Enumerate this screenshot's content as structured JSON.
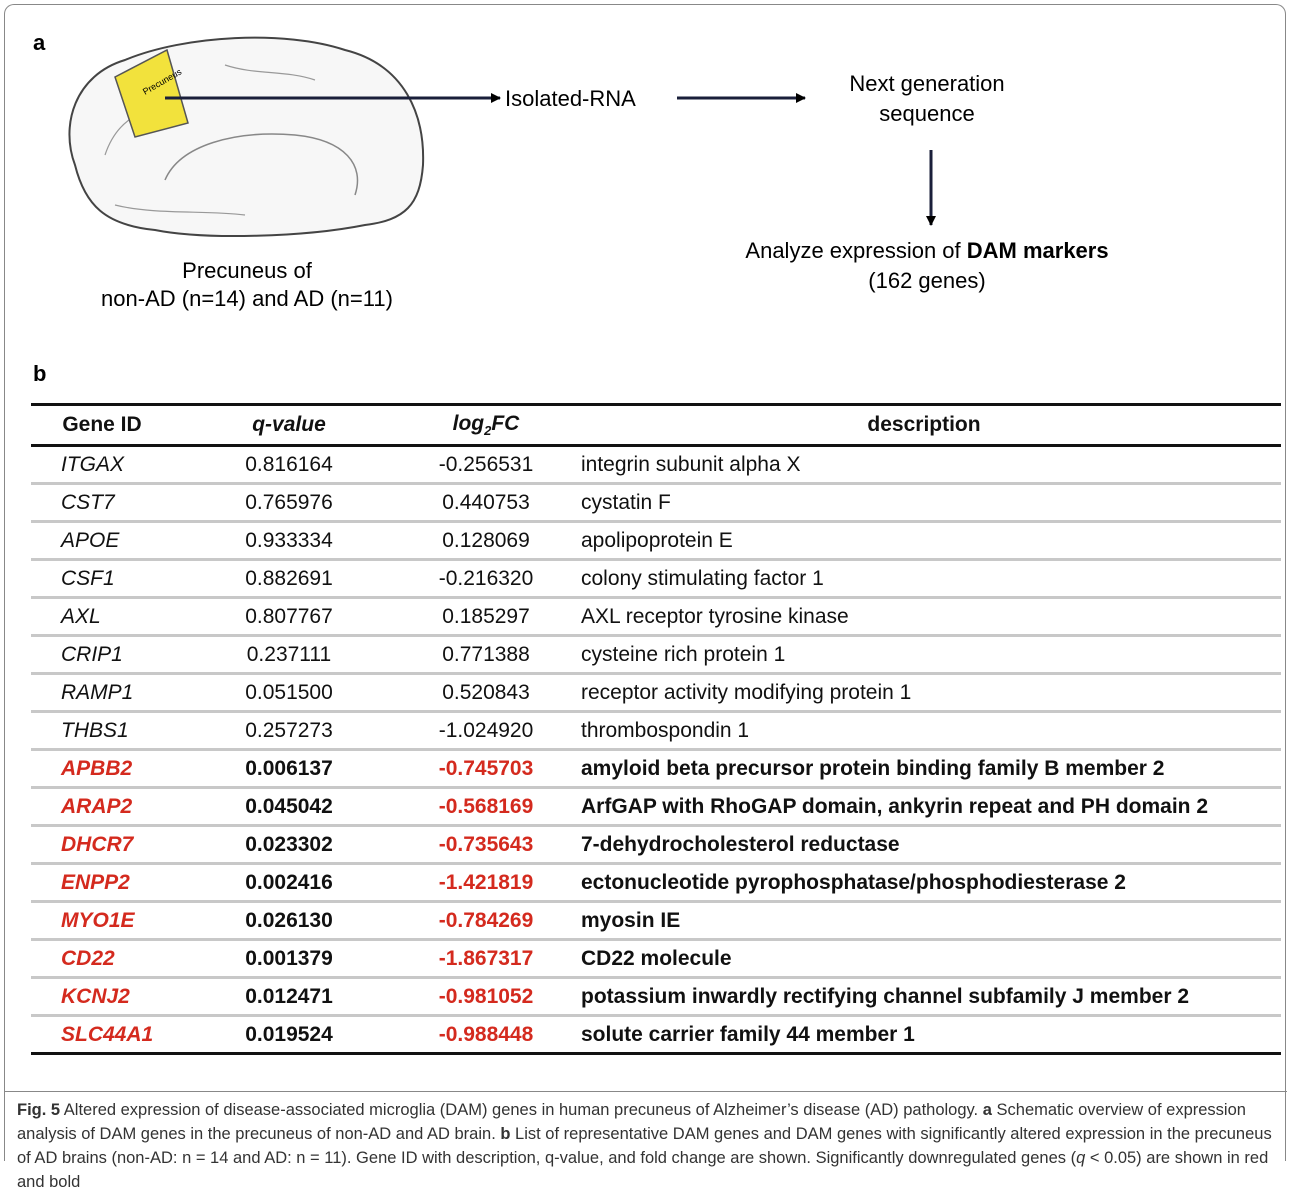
{
  "panel_a": {
    "label": "a",
    "region": "Precuneus",
    "sample": [
      "Precuneus of",
      "non-AD (n=14) and AD (n=11)"
    ],
    "step1": "Isolated-RNA",
    "step2": [
      "Next generation",
      "sequence"
    ],
    "step3": {
      "prefix": "Analyze expression of ",
      "bold": "DAM markers",
      "line2": "(162 genes)"
    }
  },
  "panel_b": {
    "label": "b"
  },
  "table": {
    "header": {
      "gene": "Gene ID",
      "q": "q-value",
      "fc": {
        "base": "log",
        "sub": "2",
        "rest": "FC"
      },
      "description": "description"
    },
    "rows": [
      {
        "gene": "ITGAX",
        "q": "0.816164",
        "fc": "-0.256531",
        "description": "integrin subunit alpha X",
        "significant": false
      },
      {
        "gene": "CST7",
        "q": "0.765976",
        "fc": "0.440753",
        "description": "cystatin F",
        "significant": false
      },
      {
        "gene": "APOE",
        "q": "0.933334",
        "fc": "0.128069",
        "description": "apolipoprotein E",
        "significant": false
      },
      {
        "gene": "CSF1",
        "q": "0.882691",
        "fc": "-0.216320",
        "description": "colony stimulating factor 1",
        "significant": false
      },
      {
        "gene": "AXL",
        "q": "0.807767",
        "fc": "0.185297",
        "description": "AXL receptor tyrosine kinase",
        "significant": false
      },
      {
        "gene": "CRIP1",
        "q": "0.237111",
        "fc": "0.771388",
        "description": "cysteine rich protein 1",
        "significant": false
      },
      {
        "gene": "RAMP1",
        "q": "0.051500",
        "fc": "0.520843",
        "description": "receptor activity modifying protein 1",
        "significant": false
      },
      {
        "gene": "THBS1",
        "q": "0.257273",
        "fc": "-1.024920",
        "description": "thrombospondin 1",
        "significant": false
      },
      {
        "gene": "APBB2",
        "q": "0.006137",
        "fc": "-0.745703",
        "description": "amyloid beta precursor protein binding family B member 2",
        "significant": true
      },
      {
        "gene": "ARAP2",
        "q": "0.045042",
        "fc": "-0.568169",
        "description": "ArfGAP with RhoGAP domain, ankyrin repeat and PH domain 2",
        "significant": true
      },
      {
        "gene": "DHCR7",
        "q": "0.023302",
        "fc": "-0.735643",
        "description": "7-dehydrocholesterol reductase",
        "significant": true
      },
      {
        "gene": "ENPP2",
        "q": "0.002416",
        "fc": "-1.421819",
        "description": "ectonucleotide pyrophosphatase/phosphodiesterase 2",
        "significant": true
      },
      {
        "gene": "MYO1E",
        "q": "0.026130",
        "fc": "-0.784269",
        "description": "myosin IE",
        "significant": true
      },
      {
        "gene": "CD22",
        "q": "0.001379",
        "fc": "-1.867317",
        "description": "CD22 molecule",
        "significant": true
      },
      {
        "gene": "KCNJ2",
        "q": "0.012471",
        "fc": "-0.981052",
        "description": "potassium inwardly rectifying channel subfamily J member 2",
        "significant": true
      },
      {
        "gene": "SLC44A1",
        "q": "0.019524",
        "fc": "-0.988448",
        "description": "solute carrier family 44 member 1",
        "significant": true
      }
    ]
  },
  "caption": {
    "label": "Fig. 5",
    "segments": [
      "  Altered expression of disease-associated microglia (DAM) genes in human precuneus of Alzheimer’s disease (AD) pathology. ",
      "a",
      " Schematic overview of expression analysis of DAM genes in the precuneus of non-AD and AD brain. ",
      "b",
      " List of representative DAM genes and DAM genes with significantly altered expression in the precuneus of AD brains (non-AD: n = 14 and AD: n = 11). Gene ID with description, q-value, and fold change are shown. Significantly downregulated genes (",
      "q",
      " < 0.05) are shown in red and bold"
    ]
  }
}
